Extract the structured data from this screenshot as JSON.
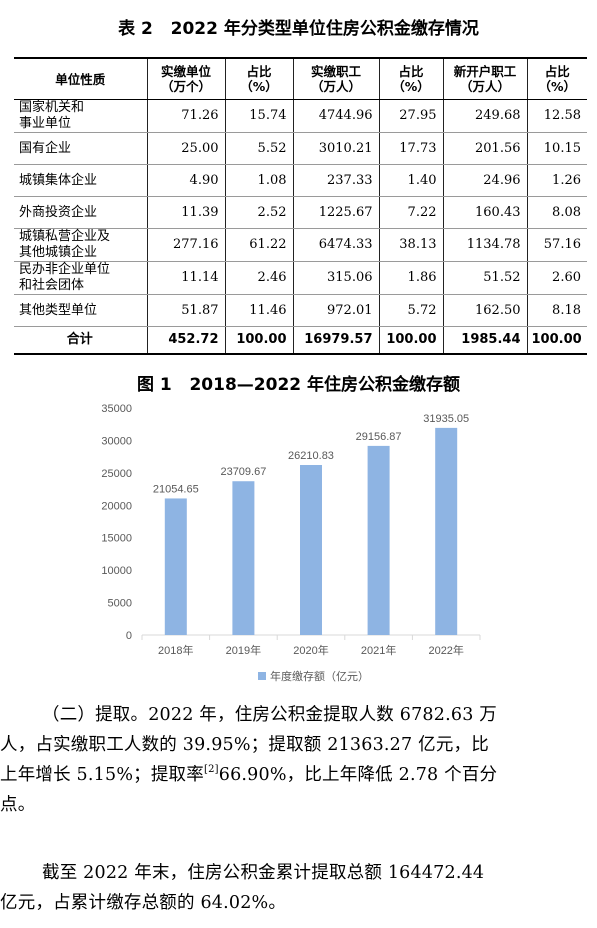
{
  "table_title": "表 2   2022 年分类型单位住房公积金缴存情况",
  "table": {
    "headers": [
      "单位性质",
      "实缴单位\n（万个）",
      "占比\n（%）",
      "实缴职工\n（万人）",
      "占比\n（%）",
      "新开户职工\n（万人）",
      "占比\n（%）"
    ],
    "rows": [
      {
        "name": "国家机关和\n事业单位",
        "units": "71.26",
        "units_pct": "15.74",
        "workers": "4744.96",
        "workers_pct": "27.95",
        "new_workers": "249.68",
        "new_pct": "12.58"
      },
      {
        "name": "国有企业",
        "units": "25.00",
        "units_pct": "5.52",
        "workers": "3010.21",
        "workers_pct": "17.73",
        "new_workers": "201.56",
        "new_pct": "10.15"
      },
      {
        "name": "城镇集体企业",
        "units": "4.90",
        "units_pct": "1.08",
        "workers": "237.33",
        "workers_pct": "1.40",
        "new_workers": "24.96",
        "new_pct": "1.26"
      },
      {
        "name": "外商投资企业",
        "units": "11.39",
        "units_pct": "2.52",
        "workers": "1225.67",
        "workers_pct": "7.22",
        "new_workers": "160.43",
        "new_pct": "8.08"
      },
      {
        "name": "城镇私营企业及\n其他城镇企业",
        "units": "277.16",
        "units_pct": "61.22",
        "workers": "6474.33",
        "workers_pct": "38.13",
        "new_workers": "1134.78",
        "new_pct": "57.16"
      },
      {
        "name": "民办非企业单位\n和社会团体",
        "units": "11.14",
        "units_pct": "2.46",
        "workers": "315.06",
        "workers_pct": "1.86",
        "new_workers": "51.52",
        "new_pct": "2.60"
      },
      {
        "name": "其他类型单位",
        "units": "51.87",
        "units_pct": "11.46",
        "workers": "972.01",
        "workers_pct": "5.72",
        "new_workers": "162.50",
        "new_pct": "8.18"
      }
    ],
    "total": {
      "name": "合计",
      "units": "452.72",
      "units_pct": "100.00",
      "workers": "16979.57",
      "workers_pct": "100.00",
      "new_workers": "1985.44",
      "new_pct": "100.00"
    }
  },
  "figure_title": "图 1   2018—2022 年住房公积金缴存额",
  "chart_data": {
    "type": "bar",
    "categories": [
      "2018年",
      "2019年",
      "2020年",
      "2021年",
      "2022年"
    ],
    "series": [
      {
        "name": "年度缴存额（亿元）",
        "values": [
          21054.65,
          23709.67,
          26210.83,
          29156.87,
          31935.05
        ]
      }
    ],
    "data_labels": [
      "21054.65",
      "23709.67",
      "26210.83",
      "29156.87",
      "31935.05"
    ],
    "y_ticks": [
      "0",
      "5000",
      "10000",
      "15000",
      "20000",
      "25000",
      "30000",
      "35000"
    ],
    "ylim": [
      0,
      35000
    ],
    "legend_position": "bottom",
    "grid": false,
    "bar_color": "#8eb4e3",
    "axis_color": "#d9d9d9",
    "label_color": "#595959"
  },
  "paragraphs": [
    {
      "lines": [
        "（二）提取。2022 年，住房公积金提取人数 6782.63 万",
        "人，占实缴职工人数的 39.95%；提取额 21363.27 亿元，比",
        "上年增长 5.15%；提取率",
        "66.90%，比上年降低 2.78 个百分",
        "点。"
      ],
      "footnote_mark": "[2]"
    },
    {
      "lines": [
        "截至 2022 年末，住房公积金累计提取总额 164472.44",
        "亿元，占累计缴存总额的 64.02%。"
      ]
    }
  ]
}
